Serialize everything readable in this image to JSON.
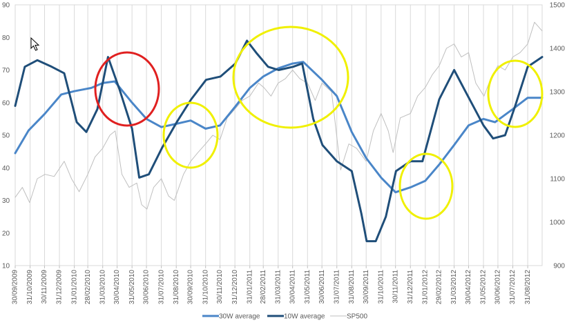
{
  "chart_data": {
    "type": "line",
    "title": "",
    "xlabel": "",
    "ylabel": "",
    "y_left": {
      "min": 10,
      "max": 90,
      "step": 10,
      "ticks": [
        "10",
        "20",
        "30",
        "40",
        "50",
        "60",
        "70",
        "80",
        "90"
      ]
    },
    "y_right": {
      "min": 900,
      "max": 1500,
      "step": 100,
      "ticks": [
        "900",
        "1000",
        "1100",
        "1200",
        "1300",
        "1400",
        "1500"
      ]
    },
    "x_range": [
      "2009-09-30",
      "2012-09-30"
    ],
    "x_ticks": [
      "30/09/2009",
      "31/10/2009",
      "30/11/2009",
      "31/12/2009",
      "31/01/2010",
      "28/02/2010",
      "31/03/2010",
      "30/04/2010",
      "31/05/2010",
      "30/06/2010",
      "31/07/2010",
      "31/08/2010",
      "30/09/2010",
      "31/10/2010",
      "30/11/2010",
      "31/12/2010",
      "31/01/2011",
      "28/02/2011",
      "31/03/2011",
      "30/04/2011",
      "31/05/2011",
      "30/06/2011",
      "31/07/2011",
      "31/08/2011",
      "30/09/2011",
      "31/10/2011",
      "30/11/2011",
      "31/12/2011",
      "31/01/2012",
      "29/02/2012",
      "31/03/2012",
      "30/04/2012",
      "31/05/2012",
      "30/06/2012",
      "31/07/2012",
      "31/08/2012"
    ],
    "grid": "vertical",
    "legend_position": "bottom",
    "series": [
      {
        "name": "30W average",
        "axis": "left",
        "color": "#4a86c8",
        "x": [
          "2009-09-30",
          "2009-10-28",
          "2009-11-30",
          "2010-01-04",
          "2010-01-31",
          "2010-03-07",
          "2010-03-31",
          "2010-04-25",
          "2010-05-31",
          "2010-06-30",
          "2010-07-31",
          "2010-08-31",
          "2010-09-30",
          "2010-10-31",
          "2010-11-30",
          "2011-01-02",
          "2011-01-31",
          "2011-02-28",
          "2011-03-31",
          "2011-04-30",
          "2011-05-22",
          "2011-06-30",
          "2011-07-31",
          "2011-08-31",
          "2011-09-30",
          "2011-10-31",
          "2011-11-30",
          "2011-12-31",
          "2012-01-31",
          "2012-02-29",
          "2012-03-31",
          "2012-04-30",
          "2012-05-31",
          "2012-06-24",
          "2012-07-31",
          "2012-08-31",
          "2012-09-30"
        ],
        "y": [
          44.5,
          51.5,
          56.5,
          62.5,
          63.5,
          64.5,
          66,
          66.5,
          60,
          55,
          52.5,
          53.5,
          54.5,
          52,
          53,
          59,
          64.5,
          68,
          70.5,
          72,
          72.5,
          67,
          62,
          51,
          43,
          37,
          32.5,
          34,
          36,
          41,
          47,
          53,
          55,
          54,
          58,
          61.5,
          61.5
        ]
      },
      {
        "name": "10W average",
        "axis": "left",
        "color": "#1f4e79",
        "x": [
          "2009-09-30",
          "2009-10-20",
          "2009-11-15",
          "2009-12-15",
          "2010-01-10",
          "2010-02-05",
          "2010-02-25",
          "2010-03-20",
          "2010-04-11",
          "2010-05-05",
          "2010-05-31",
          "2010-06-15",
          "2010-07-05",
          "2010-08-01",
          "2010-09-01",
          "2010-10-01",
          "2010-11-01",
          "2010-12-01",
          "2011-01-01",
          "2011-01-25",
          "2011-02-15",
          "2011-03-10",
          "2011-04-01",
          "2011-05-01",
          "2011-05-20",
          "2011-06-12",
          "2011-07-01",
          "2011-07-31",
          "2011-08-31",
          "2011-09-20",
          "2011-10-01",
          "2011-10-20",
          "2011-11-10",
          "2011-12-01",
          "2011-12-31",
          "2012-01-25",
          "2012-02-29",
          "2012-03-31",
          "2012-04-25",
          "2012-05-31",
          "2012-06-20",
          "2012-07-15",
          "2012-08-05",
          "2012-08-31",
          "2012-09-30"
        ],
        "y": [
          59,
          71,
          73,
          71,
          69,
          54,
          51,
          58,
          74,
          64,
          52,
          37,
          38,
          46,
          54,
          61,
          67,
          68,
          72,
          79,
          75,
          71,
          70,
          71,
          72,
          55,
          47,
          42,
          39,
          26,
          17.5,
          17.5,
          25,
          39,
          42,
          42,
          61,
          70,
          63,
          53,
          49,
          50,
          59,
          71,
          74
        ]
      },
      {
        "name": "SP500",
        "axis": "right",
        "color": "#bfbfbf",
        "x": [
          "2009-09-30",
          "2009-10-15",
          "2009-10-30",
          "2009-11-15",
          "2009-12-01",
          "2009-12-20",
          "2010-01-10",
          "2010-01-25",
          "2010-02-10",
          "2010-02-28",
          "2010-03-15",
          "2010-03-31",
          "2010-04-15",
          "2010-04-26",
          "2010-05-10",
          "2010-05-25",
          "2010-06-10",
          "2010-06-20",
          "2010-07-01",
          "2010-07-15",
          "2010-07-31",
          "2010-08-15",
          "2010-08-27",
          "2010-09-15",
          "2010-09-30",
          "2010-10-15",
          "2010-10-31",
          "2010-11-15",
          "2010-11-30",
          "2010-12-15",
          "2010-12-31",
          "2011-01-15",
          "2011-01-31",
          "2011-02-18",
          "2011-03-01",
          "2011-03-16",
          "2011-03-31",
          "2011-04-15",
          "2011-04-30",
          "2011-05-15",
          "2011-05-31",
          "2011-06-16",
          "2011-06-30",
          "2011-07-20",
          "2011-08-08",
          "2011-08-25",
          "2011-09-10",
          "2011-09-30",
          "2011-10-15",
          "2011-10-31",
          "2011-11-15",
          "2011-11-25",
          "2011-12-10",
          "2011-12-31",
          "2012-01-15",
          "2012-01-31",
          "2012-02-15",
          "2012-02-29",
          "2012-03-15",
          "2012-03-31",
          "2012-04-15",
          "2012-04-30",
          "2012-05-15",
          "2012-06-01",
          "2012-06-15",
          "2012-06-30",
          "2012-07-15",
          "2012-07-31",
          "2012-08-15",
          "2012-08-31",
          "2012-09-14",
          "2012-09-30"
        ],
        "y": [
          1057,
          1080,
          1045,
          1100,
          1110,
          1105,
          1140,
          1100,
          1070,
          1110,
          1150,
          1170,
          1200,
          1210,
          1110,
          1080,
          1090,
          1040,
          1030,
          1080,
          1100,
          1060,
          1050,
          1110,
          1140,
          1160,
          1180,
          1200,
          1190,
          1240,
          1260,
          1280,
          1290,
          1320,
          1310,
          1290,
          1320,
          1330,
          1350,
          1330,
          1320,
          1280,
          1320,
          1300,
          1120,
          1180,
          1170,
          1140,
          1210,
          1250,
          1210,
          1160,
          1240,
          1250,
          1290,
          1310,
          1340,
          1360,
          1400,
          1410,
          1380,
          1390,
          1320,
          1290,
          1330,
          1360,
          1350,
          1380,
          1390,
          1410,
          1460,
          1440
        ]
      }
    ]
  }
}
